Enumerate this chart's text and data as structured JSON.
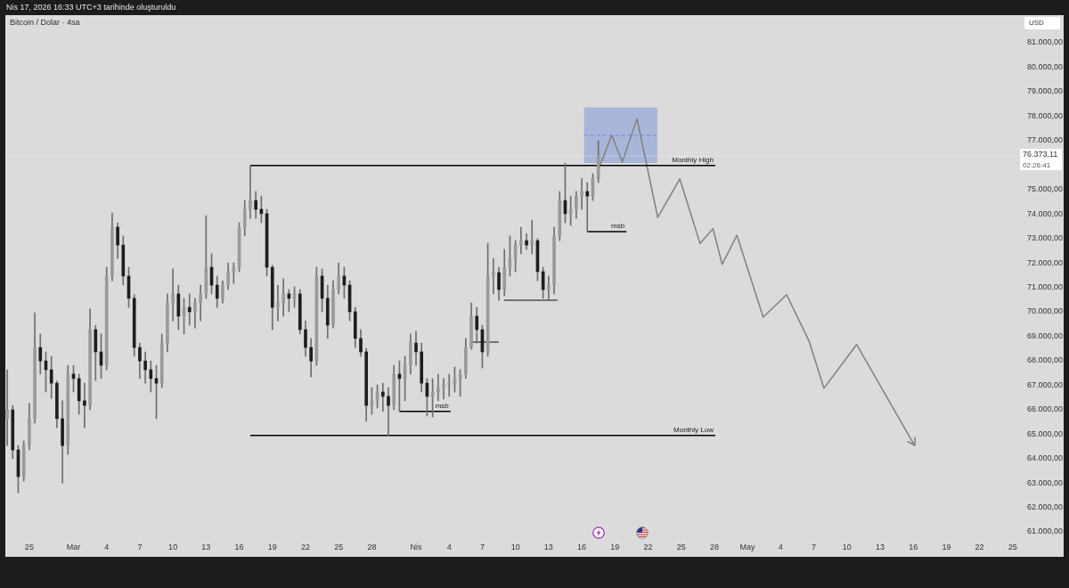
{
  "chart_data": {
    "type": "candlestick",
    "title": "Bitcoin / Dolar · 4sa",
    "ylabel": "USD",
    "xlim": [
      "2026-02-22T20:00",
      "2026-05-25T12:00"
    ],
    "xticks": [
      {
        "value": "2026-02-25",
        "label": "25"
      },
      {
        "value": "2026-03-01",
        "label": "Mar"
      },
      {
        "value": "2026-03-04",
        "label": "4"
      },
      {
        "value": "2026-03-07",
        "label": "7"
      },
      {
        "value": "2026-03-10",
        "label": "10"
      },
      {
        "value": "2026-03-13",
        "label": "13"
      },
      {
        "value": "2026-03-16",
        "label": "16"
      },
      {
        "value": "2026-03-19",
        "label": "19"
      },
      {
        "value": "2026-03-22",
        "label": "22"
      },
      {
        "value": "2026-03-25",
        "label": "25"
      },
      {
        "value": "2026-03-28",
        "label": "28"
      },
      {
        "value": "2026-04-01",
        "label": "Nis"
      },
      {
        "value": "2026-04-04",
        "label": "4"
      },
      {
        "value": "2026-04-07",
        "label": "7"
      },
      {
        "value": "2026-04-10",
        "label": "10"
      },
      {
        "value": "2026-04-13",
        "label": "13"
      },
      {
        "value": "2026-04-16",
        "label": "16"
      },
      {
        "value": "2026-04-19",
        "label": "19"
      },
      {
        "value": "2026-04-22",
        "label": "22"
      },
      {
        "value": "2026-04-25",
        "label": "25"
      },
      {
        "value": "2026-04-28",
        "label": "28"
      },
      {
        "value": "2026-05-01",
        "label": "May"
      },
      {
        "value": "2026-05-04",
        "label": "4"
      },
      {
        "value": "2026-05-07",
        "label": "7"
      },
      {
        "value": "2026-05-10",
        "label": "10"
      },
      {
        "value": "2026-05-13",
        "label": "13"
      },
      {
        "value": "2026-05-16",
        "label": "16"
      },
      {
        "value": "2026-05-19",
        "label": "19"
      },
      {
        "value": "2026-05-22",
        "label": "22"
      },
      {
        "value": "2026-05-25",
        "label": "25"
      }
    ],
    "ylim": [
      61000,
      81000
    ],
    "yticks": [
      {
        "value": 61000,
        "label": "61.000,00"
      },
      {
        "value": 62000,
        "label": "62.000,00"
      },
      {
        "value": 63000,
        "label": "63.000,00"
      },
      {
        "value": 64000,
        "label": "64.000,00"
      },
      {
        "value": 65000,
        "label": "65.000,00"
      },
      {
        "value": 66000,
        "label": "66.000,00"
      },
      {
        "value": 67000,
        "label": "67.000,00"
      },
      {
        "value": 68000,
        "label": "68.000,00"
      },
      {
        "value": 69000,
        "label": "69.000,00"
      },
      {
        "value": 70000,
        "label": "70.000,00"
      },
      {
        "value": 71000,
        "label": "71.000,00"
      },
      {
        "value": 72000,
        "label": "72.000,00"
      },
      {
        "value": 73000,
        "label": "73.000,00"
      },
      {
        "value": 74000,
        "label": "74.000,00"
      },
      {
        "value": 75000,
        "label": "75.000,00"
      },
      {
        "value": 77000,
        "label": "77.000,00"
      },
      {
        "value": 78000,
        "label": "78.000,00"
      },
      {
        "value": 79000,
        "label": "79.000,00"
      },
      {
        "value": 80000,
        "label": "80.000,00"
      },
      {
        "value": 81000,
        "label": "81.000,00"
      }
    ],
    "ref_lines": [
      {
        "axis": "y",
        "value": 76373.11,
        "label": "76.373,11",
        "color": "#f4f4f4",
        "line_style": "dotted"
      }
    ],
    "annotations": [
      "Nis 17, 2026 16:33 UTC+3 tarihinde oluşturuldu",
      "02:26:41"
    ],
    "series": [
      {
        "color": "#6e6e6e",
        "x": [
          "2026-02-23T00:00",
          "2026-02-23T12:00",
          "2026-02-24T00:00",
          "2026-02-24T12:00",
          "2026-02-25T00:00",
          "2026-02-25T12:00",
          "2026-02-26T00:00",
          "2026-02-26T12:00",
          "2026-02-27T00:00",
          "2026-02-27T12:00",
          "2026-02-28T00:00",
          "2026-02-28T12:00",
          "2026-03-01T00:00",
          "2026-03-01T12:00",
          "2026-03-02T00:00",
          "2026-03-02T12:00",
          "2026-03-03T00:00",
          "2026-03-03T12:00",
          "2026-03-04T00:00",
          "2026-03-04T12:00",
          "2026-03-05T00:00",
          "2026-03-05T12:00",
          "2026-03-06T00:00",
          "2026-03-06T12:00",
          "2026-03-07T00:00",
          "2026-03-07T12:00",
          "2026-03-08T00:00",
          "2026-03-08T12:00",
          "2026-03-09T00:00",
          "2026-03-09T12:00",
          "2026-03-10T00:00",
          "2026-03-10T12:00",
          "2026-03-11T00:00",
          "2026-03-11T12:00",
          "2026-03-12T00:00",
          "2026-03-12T12:00",
          "2026-03-13T00:00",
          "2026-03-13T12:00",
          "2026-03-14T00:00",
          "2026-03-14T12:00",
          "2026-03-15T00:00",
          "2026-03-15T12:00",
          "2026-03-16T00:00",
          "2026-03-16T12:00",
          "2026-03-17T00:00",
          "2026-03-17T12:00",
          "2026-03-18T00:00",
          "2026-03-18T12:00",
          "2026-03-19T00:00",
          "2026-03-19T12:00",
          "2026-03-20T00:00",
          "2026-03-20T12:00",
          "2026-03-21T00:00",
          "2026-03-21T12:00",
          "2026-03-22T00:00",
          "2026-03-22T12:00",
          "2026-03-23T00:00",
          "2026-03-23T12:00",
          "2026-03-24T00:00",
          "2026-03-24T12:00",
          "2026-03-25T00:00",
          "2026-03-25T12:00",
          "2026-03-26T00:00",
          "2026-03-26T12:00",
          "2026-03-27T00:00",
          "2026-03-27T12:00",
          "2026-03-28T00:00",
          "2026-03-28T12:00",
          "2026-03-29T00:00",
          "2026-03-29T12:00",
          "2026-03-30T00:00",
          "2026-03-30T12:00",
          "2026-03-31T00:00",
          "2026-03-31T12:00",
          "2026-04-01T00:00",
          "2026-04-01T12:00",
          "2026-04-02T00:00",
          "2026-04-02T12:00",
          "2026-04-03T00:00",
          "2026-04-03T12:00",
          "2026-04-04T00:00",
          "2026-04-04T12:00",
          "2026-04-05T00:00",
          "2026-04-05T12:00",
          "2026-04-06T00:00",
          "2026-04-06T12:00",
          "2026-04-07T00:00",
          "2026-04-07T12:00",
          "2026-04-08T00:00",
          "2026-04-08T12:00",
          "2026-04-09T00:00",
          "2026-04-09T12:00",
          "2026-04-10T00:00",
          "2026-04-10T12:00",
          "2026-04-11T00:00",
          "2026-04-11T12:00",
          "2026-04-12T00:00",
          "2026-04-12T12:00",
          "2026-04-13T00:00",
          "2026-04-13T12:00",
          "2026-04-14T00:00",
          "2026-04-14T12:00",
          "2026-04-15T00:00",
          "2026-04-15T12:00",
          "2026-04-16T00:00",
          "2026-04-16T12:00",
          "2026-04-17T00:00",
          "2026-04-17T12:00"
        ],
        "ohlc": [
          [
            65630,
            67630,
            64530,
            65990
          ],
          [
            65990,
            66170,
            63990,
            64350
          ],
          [
            64350,
            64530,
            62600,
            63260
          ],
          [
            63260,
            64720,
            63080,
            64530
          ],
          [
            64530,
            66250,
            64350,
            65630
          ],
          [
            65630,
            69960,
            65450,
            68540
          ],
          [
            68540,
            69090,
            67450,
            67990
          ],
          [
            67990,
            68360,
            66720,
            67630
          ],
          [
            67630,
            68180,
            66460,
            67080
          ],
          [
            67080,
            67160,
            65260,
            65630
          ],
          [
            65630,
            66360,
            63000,
            64530
          ],
          [
            64530,
            67810,
            64170,
            67450
          ],
          [
            67450,
            67810,
            66720,
            67270
          ],
          [
            67270,
            67450,
            65810,
            66360
          ],
          [
            66360,
            67080,
            65260,
            66170
          ],
          [
            66170,
            70110,
            65990,
            69270
          ],
          [
            69270,
            69450,
            67190,
            68360
          ],
          [
            68360,
            69090,
            67270,
            67810
          ],
          [
            67810,
            71820,
            67630,
            71460
          ],
          [
            71460,
            74040,
            71270,
            73460
          ],
          [
            73460,
            73640,
            72180,
            72730
          ],
          [
            72730,
            73100,
            71090,
            71460
          ],
          [
            71460,
            71820,
            70180,
            70550
          ],
          [
            70550,
            70700,
            68180,
            68540
          ],
          [
            68540,
            68720,
            67270,
            67990
          ],
          [
            67990,
            68360,
            67080,
            67630
          ],
          [
            67630,
            67990,
            66720,
            67270
          ],
          [
            67270,
            67810,
            65630,
            67080
          ],
          [
            67080,
            69090,
            66900,
            68720
          ],
          [
            68720,
            70730,
            68360,
            70360
          ],
          [
            70360,
            71750,
            69630,
            70730
          ],
          [
            70730,
            71090,
            69270,
            69820
          ],
          [
            69820,
            70550,
            69090,
            70180
          ],
          [
            70180,
            70730,
            69450,
            70000
          ],
          [
            70000,
            70550,
            69340,
            70360
          ],
          [
            70360,
            71090,
            69630,
            70730
          ],
          [
            70730,
            73930,
            70550,
            71820
          ],
          [
            71820,
            72370,
            70730,
            71090
          ],
          [
            71090,
            71460,
            70180,
            70550
          ],
          [
            70550,
            71270,
            70360,
            71090
          ],
          [
            71090,
            72000,
            70910,
            71640
          ],
          [
            71640,
            72000,
            71160,
            71820
          ],
          [
            71820,
            73640,
            71640,
            73460
          ],
          [
            73460,
            74550,
            73100,
            74190
          ],
          [
            74190,
            75980,
            73820,
            74550
          ],
          [
            74550,
            74920,
            73820,
            74190
          ],
          [
            74190,
            74730,
            73640,
            74010
          ],
          [
            74010,
            74190,
            71460,
            71820
          ],
          [
            71820,
            71900,
            69270,
            70180
          ],
          [
            70180,
            71090,
            69630,
            70360
          ],
          [
            70360,
            71350,
            69820,
            70730
          ],
          [
            70730,
            70910,
            70000,
            70550
          ],
          [
            70550,
            71020,
            70180,
            70730
          ],
          [
            70730,
            70910,
            69090,
            69270
          ],
          [
            69270,
            69630,
            68180,
            68540
          ],
          [
            68540,
            68910,
            67340,
            67990
          ],
          [
            67990,
            71820,
            67810,
            71460
          ],
          [
            71460,
            71750,
            70000,
            70550
          ],
          [
            70550,
            71090,
            68910,
            69450
          ],
          [
            69450,
            71270,
            69340,
            70910
          ],
          [
            70910,
            72000,
            70730,
            71460
          ],
          [
            71460,
            71820,
            70550,
            71090
          ],
          [
            71090,
            71270,
            69630,
            70000
          ],
          [
            70000,
            70180,
            68540,
            68910
          ],
          [
            68910,
            69270,
            68180,
            68360
          ],
          [
            68360,
            68500,
            65520,
            66170
          ],
          [
            66170,
            66900,
            65810,
            66360
          ],
          [
            66360,
            67010,
            66060,
            66720
          ],
          [
            66720,
            67080,
            65920,
            66540
          ],
          [
            66540,
            66900,
            64940,
            66170
          ],
          [
            66170,
            67810,
            65990,
            67450
          ],
          [
            67450,
            67990,
            65930,
            67270
          ],
          [
            67270,
            68180,
            66360,
            67810
          ],
          [
            67810,
            69090,
            67450,
            68720
          ],
          [
            68720,
            69200,
            67810,
            68360
          ],
          [
            68360,
            68720,
            66720,
            67080
          ],
          [
            67080,
            67270,
            65740,
            66540
          ],
          [
            66540,
            67270,
            65700,
            66720
          ],
          [
            66720,
            67450,
            66360,
            66900
          ],
          [
            66900,
            67270,
            66430,
            67010
          ],
          [
            67010,
            67450,
            66540,
            67080
          ],
          [
            67080,
            67740,
            66720,
            67270
          ],
          [
            67270,
            67630,
            66540,
            67450
          ],
          [
            67450,
            68910,
            67270,
            68540
          ],
          [
            68540,
            70360,
            68470,
            69820
          ],
          [
            69820,
            70180,
            68720,
            69270
          ],
          [
            69270,
            69450,
            67700,
            68360
          ],
          [
            68360,
            72800,
            68180,
            71460
          ],
          [
            71460,
            72180,
            70730,
            71600
          ],
          [
            71600,
            71820,
            70470,
            70910
          ],
          [
            70910,
            72550,
            70650,
            71820
          ],
          [
            71820,
            73100,
            71460,
            72180
          ],
          [
            72180,
            72910,
            71640,
            72730
          ],
          [
            72730,
            73460,
            72370,
            72910
          ],
          [
            72910,
            73200,
            72550,
            72730
          ],
          [
            72730,
            73750,
            72370,
            72910
          ],
          [
            72910,
            72990,
            71270,
            71640
          ],
          [
            71640,
            71820,
            70550,
            70910
          ],
          [
            70910,
            71460,
            70470,
            71090
          ],
          [
            71090,
            73460,
            70730,
            73100
          ],
          [
            73100,
            74920,
            72910,
            74550
          ],
          [
            74550,
            76080,
            73640,
            74010
          ],
          [
            74010,
            74730,
            73530,
            74190
          ],
          [
            74190,
            74920,
            73820,
            74730
          ],
          [
            74730,
            75460,
            74190,
            74920
          ],
          [
            74920,
            75280,
            73280,
            74730
          ],
          [
            74730,
            75650,
            74550,
            75460
          ],
          [
            75460,
            76990,
            75280,
            76373.11
          ]
        ],
        "colors": [
          "#9a9a9a",
          "#1e1e1e",
          "#1e1e1e",
          "#9a9a9a",
          "#9a9a9a",
          "#9a9a9a",
          "#1e1e1e",
          "#1e1e1e",
          "#1e1e1e",
          "#1e1e1e",
          "#1e1e1e",
          "#9a9a9a",
          "#1e1e1e",
          "#1e1e1e",
          "#1e1e1e",
          "#9a9a9a",
          "#1e1e1e",
          "#1e1e1e",
          "#9a9a9a",
          "#9a9a9a",
          "#1e1e1e",
          "#1e1e1e",
          "#1e1e1e",
          "#1e1e1e",
          "#1e1e1e",
          "#1e1e1e",
          "#1e1e1e",
          "#1e1e1e",
          "#9a9a9a",
          "#9a9a9a",
          "#9a9a9a",
          "#1e1e1e",
          "#9a9a9a",
          "#1e1e1e",
          "#9a9a9a",
          "#9a9a9a",
          "#9a9a9a",
          "#1e1e1e",
          "#1e1e1e",
          "#9a9a9a",
          "#9a9a9a",
          "#9a9a9a",
          "#9a9a9a",
          "#9a9a9a",
          "#9a9a9a",
          "#1e1e1e",
          "#1e1e1e",
          "#1e1e1e",
          "#1e1e1e",
          "#9a9a9a",
          "#9a9a9a",
          "#1e1e1e",
          "#9a9a9a",
          "#1e1e1e",
          "#1e1e1e",
          "#1e1e1e",
          "#9a9a9a",
          "#1e1e1e",
          "#1e1e1e",
          "#9a9a9a",
          "#9a9a9a",
          "#1e1e1e",
          "#1e1e1e",
          "#1e1e1e",
          "#1e1e1e",
          "#1e1e1e",
          "#9a9a9a",
          "#9a9a9a",
          "#1e1e1e",
          "#1e1e1e",
          "#9a9a9a",
          "#1e1e1e",
          "#9a9a9a",
          "#9a9a9a",
          "#1e1e1e",
          "#1e1e1e",
          "#1e1e1e",
          "#9a9a9a",
          "#9a9a9a",
          "#9a9a9a",
          "#9a9a9a",
          "#9a9a9a",
          "#9a9a9a",
          "#9a9a9a",
          "#9a9a9a",
          "#1e1e1e",
          "#1e1e1e",
          "#9a9a9a",
          "#9a9a9a",
          "#1e1e1e",
          "#9a9a9a",
          "#9a9a9a",
          "#9a9a9a",
          "#9a9a9a",
          "#1e1e1e",
          "#9a9a9a",
          "#1e1e1e",
          "#1e1e1e",
          "#9a9a9a",
          "#9a9a9a",
          "#9a9a9a",
          "#1e1e1e",
          "#9a9a9a",
          "#9a9a9a",
          "#9a9a9a",
          "#1e1e1e",
          "#9a9a9a",
          "#9a9a9a"
        ]
      },
      {
        "type": "line",
        "name": "Monthly High",
        "x": [
          "2026-03-17T00:00",
          "2026-04-28T02:00"
        ],
        "values": [
          75980,
          75980
        ],
        "color": "#000000"
      },
      {
        "type": "line",
        "name": "Monthly Low",
        "x": [
          "2026-03-17T00:00",
          "2026-04-28T02:00"
        ],
        "values": [
          64940,
          64940
        ],
        "color": "#000000"
      },
      {
        "type": "line",
        "name": "msb",
        "x": [
          "2026-03-30T12:00",
          "2026-04-04T03:00"
        ],
        "values": [
          65930,
          65930
        ],
        "color": "#000000"
      },
      {
        "type": "line",
        "x": [
          "2026-04-05T22:00",
          "2026-04-08T12:00"
        ],
        "values": [
          68760,
          68760
        ],
        "color": "#505050"
      },
      {
        "type": "line",
        "x": [
          "2026-04-08T23:00",
          "2026-04-13T19:00"
        ],
        "values": [
          70470,
          70470
        ],
        "color": "#505050"
      },
      {
        "type": "line",
        "name": "msb",
        "x": [
          "2026-04-16T12:00",
          "2026-04-20T01:00"
        ],
        "values": [
          73280,
          73280
        ],
        "color": "#000000"
      },
      {
        "type": "line",
        "x": [
          "2026-04-16T05:00",
          "2026-04-22T20:00"
        ],
        "values": [
          77210,
          77210
        ],
        "lower": [
          76080,
          76080
        ],
        "upper": [
          78350,
          78350
        ],
        "color": "#6d87d6",
        "line_style": "dashed"
      },
      {
        "type": "line",
        "x": [
          "2026-04-17T14:00",
          "2026-04-18T17:00",
          "2026-04-19T16:00",
          "2026-04-21T00:00",
          "2026-04-22T21:00",
          "2026-04-24T21:00",
          "2026-04-26T17:00",
          "2026-04-27T21:00",
          "2026-04-28T17:00",
          "2026-04-30T01:00",
          "2026-05-02T10:00",
          "2026-05-04T13:00",
          "2026-05-06T14:00",
          "2026-05-07T22:00",
          "2026-05-10T21:00",
          "2026-05-16T03:00"
        ],
        "values": [
          75900,
          77220,
          76130,
          77890,
          73860,
          75430,
          72790,
          73400,
          71940,
          73130,
          69780,
          70700,
          68790,
          66870,
          68660,
          64530
        ],
        "color": "#808080"
      }
    ]
  }
}
